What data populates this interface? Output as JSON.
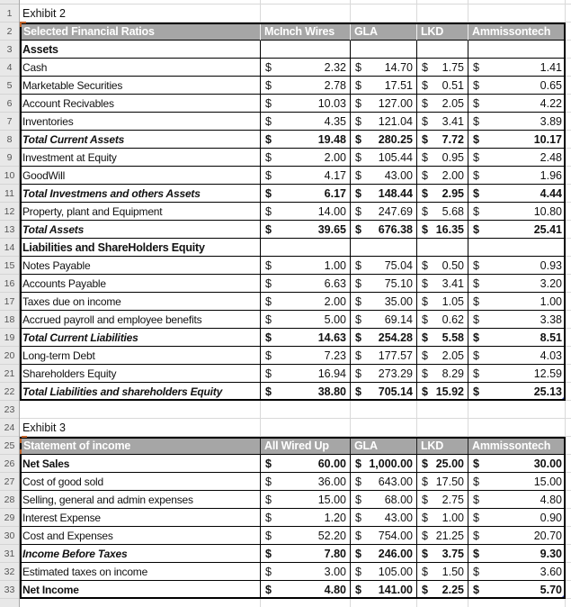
{
  "currency": "$",
  "colors": {
    "header_fill": "#A6A6A6",
    "header_text": "#FFFFFF",
    "table_border": "#000000",
    "sheet_gridline": "#D9D9D9",
    "rail_background": "#E8E8E8",
    "rail_text": "#555555",
    "accent_orange": "#C0622A",
    "smart_tag_blue": "#3E50B4"
  },
  "row_numbers": [
    1,
    2,
    3,
    4,
    5,
    6,
    7,
    8,
    9,
    10,
    11,
    12,
    13,
    14,
    15,
    16,
    17,
    18,
    19,
    20,
    21,
    22,
    23,
    24,
    25,
    26,
    27,
    28,
    29,
    30,
    31,
    32,
    33
  ],
  "exhibit2": {
    "title": "Exhibit 2",
    "header_label": "Selected Financial Ratios",
    "columns": [
      "McInch Wires",
      "GLA",
      "LKD",
      "Ammissontech"
    ],
    "rows": [
      {
        "label": "Assets",
        "style": "section",
        "values": null
      },
      {
        "label": "Cash",
        "style": "normal",
        "values": [
          "2.32",
          "14.70",
          "1.75",
          "1.41"
        ]
      },
      {
        "label": "Marketable Securities",
        "style": "normal",
        "values": [
          "2.78",
          "17.51",
          "0.51",
          "0.65"
        ]
      },
      {
        "label": "Account Recivables",
        "style": "normal",
        "values": [
          "10.03",
          "127.00",
          "2.05",
          "4.22"
        ]
      },
      {
        "label": "Inventories",
        "style": "normal",
        "values": [
          "4.35",
          "121.04",
          "3.41",
          "3.89"
        ]
      },
      {
        "label": "Total Current Assets",
        "style": "total",
        "values": [
          "19.48",
          "280.25",
          "7.72",
          "10.17"
        ]
      },
      {
        "label": "Investment at Equity",
        "style": "normal",
        "values": [
          "2.00",
          "105.44",
          "0.95",
          "2.48"
        ]
      },
      {
        "label": "GoodWill",
        "style": "normal",
        "values": [
          "4.17",
          "43.00",
          "2.00",
          "1.96"
        ]
      },
      {
        "label": "Total Investmens and others Assets",
        "style": "total",
        "values": [
          "6.17",
          "148.44",
          "2.95",
          "4.44"
        ]
      },
      {
        "label": "Property, plant and Equipment",
        "style": "normal",
        "values": [
          "14.00",
          "247.69",
          "5.68",
          "10.80"
        ]
      },
      {
        "label": "Total Assets",
        "style": "total",
        "values": [
          "39.65",
          "676.38",
          "16.35",
          "25.41"
        ]
      },
      {
        "label": "Liabilities and ShareHolders Equity",
        "style": "section",
        "values": null
      },
      {
        "label": "Notes Payable",
        "style": "normal",
        "values": [
          "1.00",
          "75.04",
          "0.50",
          "0.93"
        ]
      },
      {
        "label": "Accounts Payable",
        "style": "normal",
        "values": [
          "6.63",
          "75.10",
          "3.41",
          "3.20"
        ]
      },
      {
        "label": "Taxes due on income",
        "style": "normal",
        "values": [
          "2.00",
          "35.00",
          "1.05",
          "1.00"
        ]
      },
      {
        "label": "Accrued payroll and employee benefits",
        "style": "normal",
        "values": [
          "5.00",
          "69.14",
          "0.62",
          "3.38"
        ]
      },
      {
        "label": "Total Current Liabilities",
        "style": "total",
        "values": [
          "14.63",
          "254.28",
          "5.58",
          "8.51"
        ]
      },
      {
        "label": "Long-term Debt",
        "style": "normal",
        "values": [
          "7.23",
          "177.57",
          "2.05",
          "4.03"
        ]
      },
      {
        "label": "Shareholders Equity",
        "style": "normal",
        "values": [
          "16.94",
          "273.29",
          "8.29",
          "12.59"
        ]
      },
      {
        "label": "Total Liabilities and shareholders Equity",
        "style": "total",
        "values": [
          "38.80",
          "705.14",
          "15.92",
          "25.13"
        ],
        "smart_tag": true
      }
    ]
  },
  "exhibit3": {
    "title": "Exhibit 3",
    "header_label": "Statement of income",
    "columns": [
      "All Wired Up",
      "GLA",
      "LKD",
      "Ammissontech"
    ],
    "rows": [
      {
        "label": "Net Sales",
        "style": "bold",
        "values": [
          "60.00",
          "1,000.00",
          "25.00",
          "30.00"
        ]
      },
      {
        "label": "Cost of good sold",
        "style": "normal",
        "values": [
          "36.00",
          "643.00",
          "17.50",
          "15.00"
        ]
      },
      {
        "label": "Selling, general and admin expenses",
        "style": "normal",
        "values": [
          "15.00",
          "68.00",
          "2.75",
          "4.80"
        ]
      },
      {
        "label": "Interest Expense",
        "style": "normal",
        "values": [
          "1.20",
          "43.00",
          "1.00",
          "0.90"
        ]
      },
      {
        "label": "Cost and Expenses",
        "style": "normal",
        "values": [
          "52.20",
          "754.00",
          "21.25",
          "20.70"
        ]
      },
      {
        "label": "Income Before Taxes",
        "style": "total",
        "values": [
          "7.80",
          "246.00",
          "3.75",
          "9.30"
        ]
      },
      {
        "label": "Estimated taxes on income",
        "style": "normal",
        "values": [
          "3.00",
          "105.00",
          "1.50",
          "3.60"
        ]
      },
      {
        "label": "Net Income",
        "style": "bold",
        "values": [
          "4.80",
          "141.00",
          "2.25",
          "5.70"
        ],
        "smart_tag": true
      }
    ]
  },
  "smart_tag_cells": [
    "E22",
    "E33"
  ]
}
